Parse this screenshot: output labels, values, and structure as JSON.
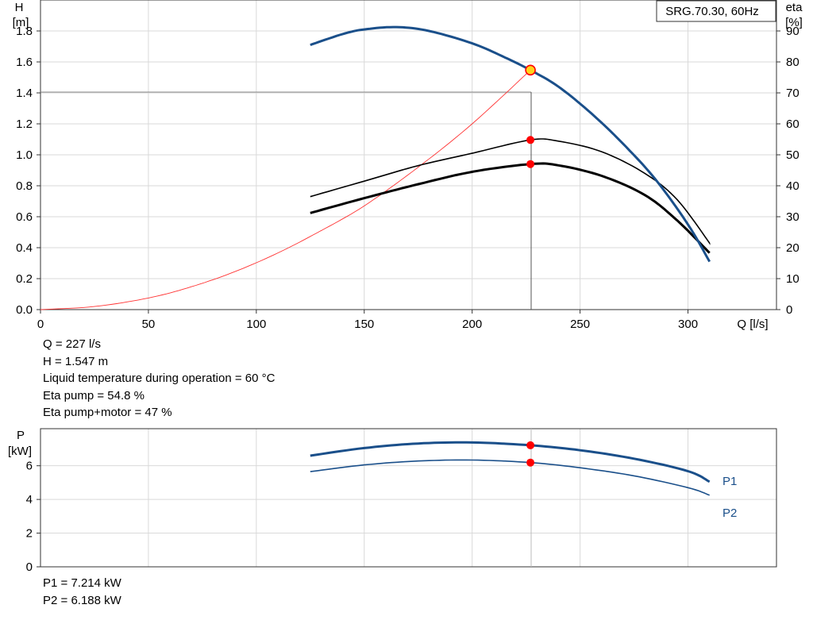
{
  "legend_box": "SRG.70.30, 60Hz",
  "top_chart": {
    "left_axis": {
      "title": "H",
      "unit": "[m]",
      "ticks": [
        "0.0",
        "0.2",
        "0.4",
        "0.6",
        "0.8",
        "1.0",
        "1.2",
        "1.4",
        "1.6",
        "1.8"
      ]
    },
    "right_axis": {
      "title": "eta",
      "unit": "[%]",
      "ticks": [
        "0",
        "10",
        "20",
        "30",
        "40",
        "50",
        "60",
        "70",
        "80",
        "90"
      ]
    },
    "x_axis": {
      "unit": "Q [l/s]",
      "ticks": [
        "0",
        "50",
        "100",
        "150",
        "200",
        "250",
        "300"
      ]
    }
  },
  "bottom_chart": {
    "left_axis": {
      "title": "P",
      "unit": "[kW]",
      "ticks": [
        "0",
        "2",
        "4",
        "6"
      ]
    },
    "p1_label": "P1",
    "p2_label": "P2"
  },
  "duty_info": [
    "Q = 227 l/s",
    "H = 1.547 m",
    "Liquid temperature during operation = 60 °C",
    "Eta pump = 54.8 %",
    "Eta pump+motor = 47 %"
  ],
  "power_info": [
    "P1 = 7.214 kW",
    "P2 = 6.188 kW"
  ],
  "colors": {
    "pump_curve": "#1a4f8a",
    "system_curve": "#ff3333",
    "eta": "#000000",
    "duty_point": "#ff0000",
    "duty_point_head": "#ffd21a"
  },
  "chart_data": [
    {
      "type": "line",
      "title": "SRG.70.30, 60Hz",
      "xlabel": "Q [l/s]",
      "ylabel": "H [m]",
      "y2label": "eta [%]",
      "xlim": [
        0,
        341
      ],
      "ylim": [
        0,
        2.0
      ],
      "y2lim": [
        0,
        100
      ],
      "grid": true,
      "series": [
        {
          "axis": "left",
          "x": [
            125,
            140,
            150,
            165,
            180,
            200,
            215,
            227,
            240,
            255,
            270,
            285,
            300,
            310
          ],
          "y": [
            1.71,
            1.78,
            1.81,
            1.825,
            1.8,
            1.72,
            1.63,
            1.547,
            1.44,
            1.27,
            1.07,
            0.84,
            0.55,
            0.31
          ]
        },
        {
          "axis": "left",
          "x": [
            0,
            25,
            50,
            70,
            90,
            110,
            130,
            150,
            175,
            200,
            227
          ],
          "y": [
            0.0,
            0.02,
            0.075,
            0.148,
            0.245,
            0.366,
            0.51,
            0.67,
            0.92,
            1.2,
            1.547
          ]
        },
        {
          "axis": "right",
          "x": [
            125,
            150,
            175,
            200,
            227,
            240,
            260,
            280,
            295,
            310
          ],
          "y": [
            36.5,
            41.5,
            46.5,
            50.5,
            54.8,
            54.4,
            51.0,
            44.0,
            35.5,
            21.5
          ]
        },
        {
          "axis": "right",
          "x": [
            125,
            150,
            175,
            200,
            227,
            240,
            260,
            280,
            295,
            310
          ],
          "y": [
            31.2,
            36.0,
            40.5,
            44.5,
            47.0,
            46.6,
            43.2,
            37.0,
            28.8,
            18.3
          ]
        }
      ],
      "duty_point": {
        "q": 227,
        "h": 1.547,
        "eta_pump": 54.8,
        "eta_pump_motor": 47
      }
    },
    {
      "type": "line",
      "ylabel": "P [kW]",
      "xlim": [
        0,
        341
      ],
      "ylim": [
        0,
        8.2
      ],
      "grid": true,
      "series": [
        {
          "name": "P1",
          "x": [
            125,
            150,
            175,
            200,
            227,
            250,
            275,
            300,
            310
          ],
          "y": [
            6.6,
            7.05,
            7.32,
            7.38,
            7.214,
            6.92,
            6.42,
            5.68,
            5.05
          ]
        },
        {
          "name": "P2",
          "x": [
            125,
            150,
            175,
            200,
            227,
            250,
            275,
            300,
            310
          ],
          "y": [
            5.65,
            6.05,
            6.28,
            6.34,
            6.188,
            5.88,
            5.4,
            4.7,
            4.25
          ]
        }
      ],
      "duty_point": {
        "q": 227,
        "p1": 7.214,
        "p2": 6.188
      }
    }
  ]
}
